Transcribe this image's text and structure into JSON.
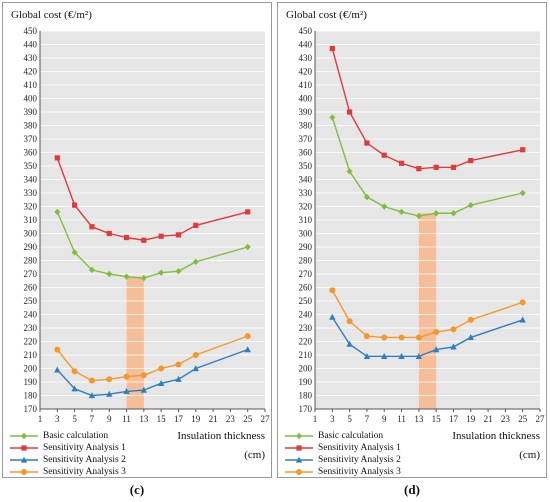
{
  "colors": {
    "basic": "#7fbf3f",
    "sa1": "#e03a3a",
    "sa2": "#2e7fc1",
    "sa3": "#f5982c",
    "highlight": "#f7b58a",
    "plot_bg": "#e6e6e6"
  },
  "chart_data": [
    {
      "id": "c",
      "type": "line",
      "caption": "(c)",
      "ylabel": "Global cost (€/m²)",
      "xlabel": "Insulation thickness",
      "xunit": "(cm)",
      "xlim": [
        1,
        27
      ],
      "xticks": [
        1,
        3,
        5,
        7,
        9,
        11,
        13,
        15,
        17,
        19,
        21,
        23,
        25,
        27
      ],
      "ylim": [
        170,
        450
      ],
      "ystep": 10,
      "grid": true,
      "highlight_x": [
        11,
        13
      ],
      "series": [
        {
          "name": "Basic calculation",
          "marker": "diamond",
          "color_key": "basic",
          "x": [
            3,
            5,
            7,
            9,
            11,
            13,
            15,
            17,
            19,
            25
          ],
          "y": [
            316,
            286,
            273,
            270,
            268,
            267,
            271,
            272,
            279,
            290
          ]
        },
        {
          "name": "Sensitivity Analysis 1",
          "marker": "square",
          "color_key": "sa1",
          "x": [
            3,
            5,
            7,
            9,
            11,
            13,
            15,
            17,
            19,
            25
          ],
          "y": [
            356,
            321,
            305,
            300,
            297,
            295,
            298,
            299,
            306,
            316
          ]
        },
        {
          "name": "Sensitivity Analysis 2",
          "marker": "triangle",
          "color_key": "sa2",
          "x": [
            3,
            5,
            7,
            9,
            11,
            13,
            15,
            17,
            19,
            25
          ],
          "y": [
            199,
            185,
            180,
            181,
            183,
            184,
            189,
            192,
            200,
            214
          ]
        },
        {
          "name": "Sensitivity Analysis 3",
          "marker": "circle",
          "color_key": "sa3",
          "x": [
            3,
            5,
            7,
            9,
            11,
            13,
            15,
            17,
            19,
            25
          ],
          "y": [
            214,
            198,
            191,
            192,
            194,
            195,
            200,
            203,
            210,
            224
          ]
        }
      ]
    },
    {
      "id": "d",
      "type": "line",
      "caption": "(d)",
      "ylabel": "Global cost (€/m²)",
      "xlabel": "Insulation thickness",
      "xunit": "(cm)",
      "xlim": [
        1,
        27
      ],
      "xticks": [
        1,
        3,
        5,
        7,
        9,
        11,
        13,
        15,
        17,
        19,
        21,
        23,
        25,
        27
      ],
      "ylim": [
        170,
        450
      ],
      "ystep": 10,
      "grid": true,
      "highlight_x": [
        13,
        15
      ],
      "series": [
        {
          "name": "Basic calculation",
          "marker": "diamond",
          "color_key": "basic",
          "x": [
            3,
            5,
            7,
            9,
            11,
            13,
            15,
            17,
            19,
            25
          ],
          "y": [
            386,
            346,
            327,
            320,
            316,
            313,
            315,
            315,
            321,
            330
          ]
        },
        {
          "name": "Sensitivity Analysis 1",
          "marker": "square",
          "color_key": "sa1",
          "x": [
            3,
            5,
            7,
            9,
            11,
            13,
            15,
            17,
            19,
            25
          ],
          "y": [
            437,
            390,
            367,
            358,
            352,
            348,
            349,
            349,
            354,
            362
          ]
        },
        {
          "name": "Sensitivity Analysis 2",
          "marker": "triangle",
          "color_key": "sa2",
          "x": [
            3,
            5,
            7,
            9,
            11,
            13,
            15,
            17,
            19,
            25
          ],
          "y": [
            238,
            218,
            209,
            209,
            209,
            209,
            214,
            216,
            223,
            236
          ]
        },
        {
          "name": "Sensitivity Analysis 3",
          "marker": "circle",
          "color_key": "sa3",
          "x": [
            3,
            5,
            7,
            9,
            11,
            13,
            15,
            17,
            19,
            25
          ],
          "y": [
            258,
            235,
            224,
            223,
            223,
            223,
            227,
            229,
            236,
            249
          ]
        }
      ]
    }
  ]
}
